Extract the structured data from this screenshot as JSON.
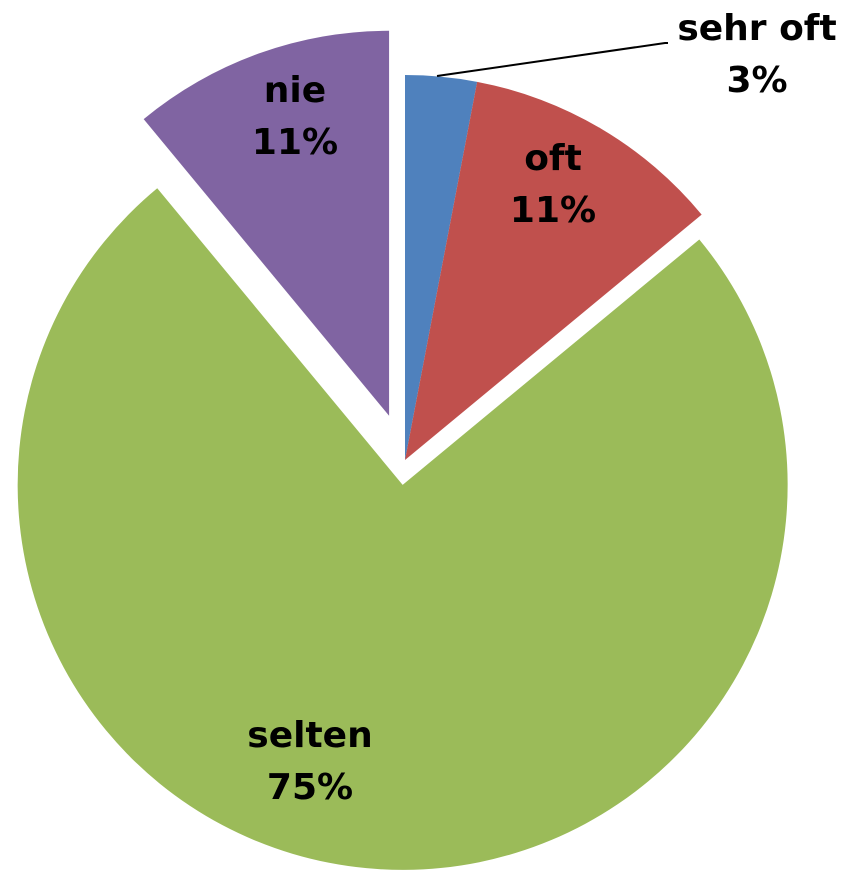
{
  "chart_data": {
    "type": "pie",
    "categories": [
      "sehr oft",
      "oft",
      "selten",
      "nie"
    ],
    "values": [
      3,
      11,
      75,
      11
    ],
    "value_labels": [
      "3%",
      "11%",
      "75%",
      "11%"
    ],
    "colors": [
      "#4f81bd",
      "#c0504d",
      "#9bbb59",
      "#8064a2"
    ]
  }
}
